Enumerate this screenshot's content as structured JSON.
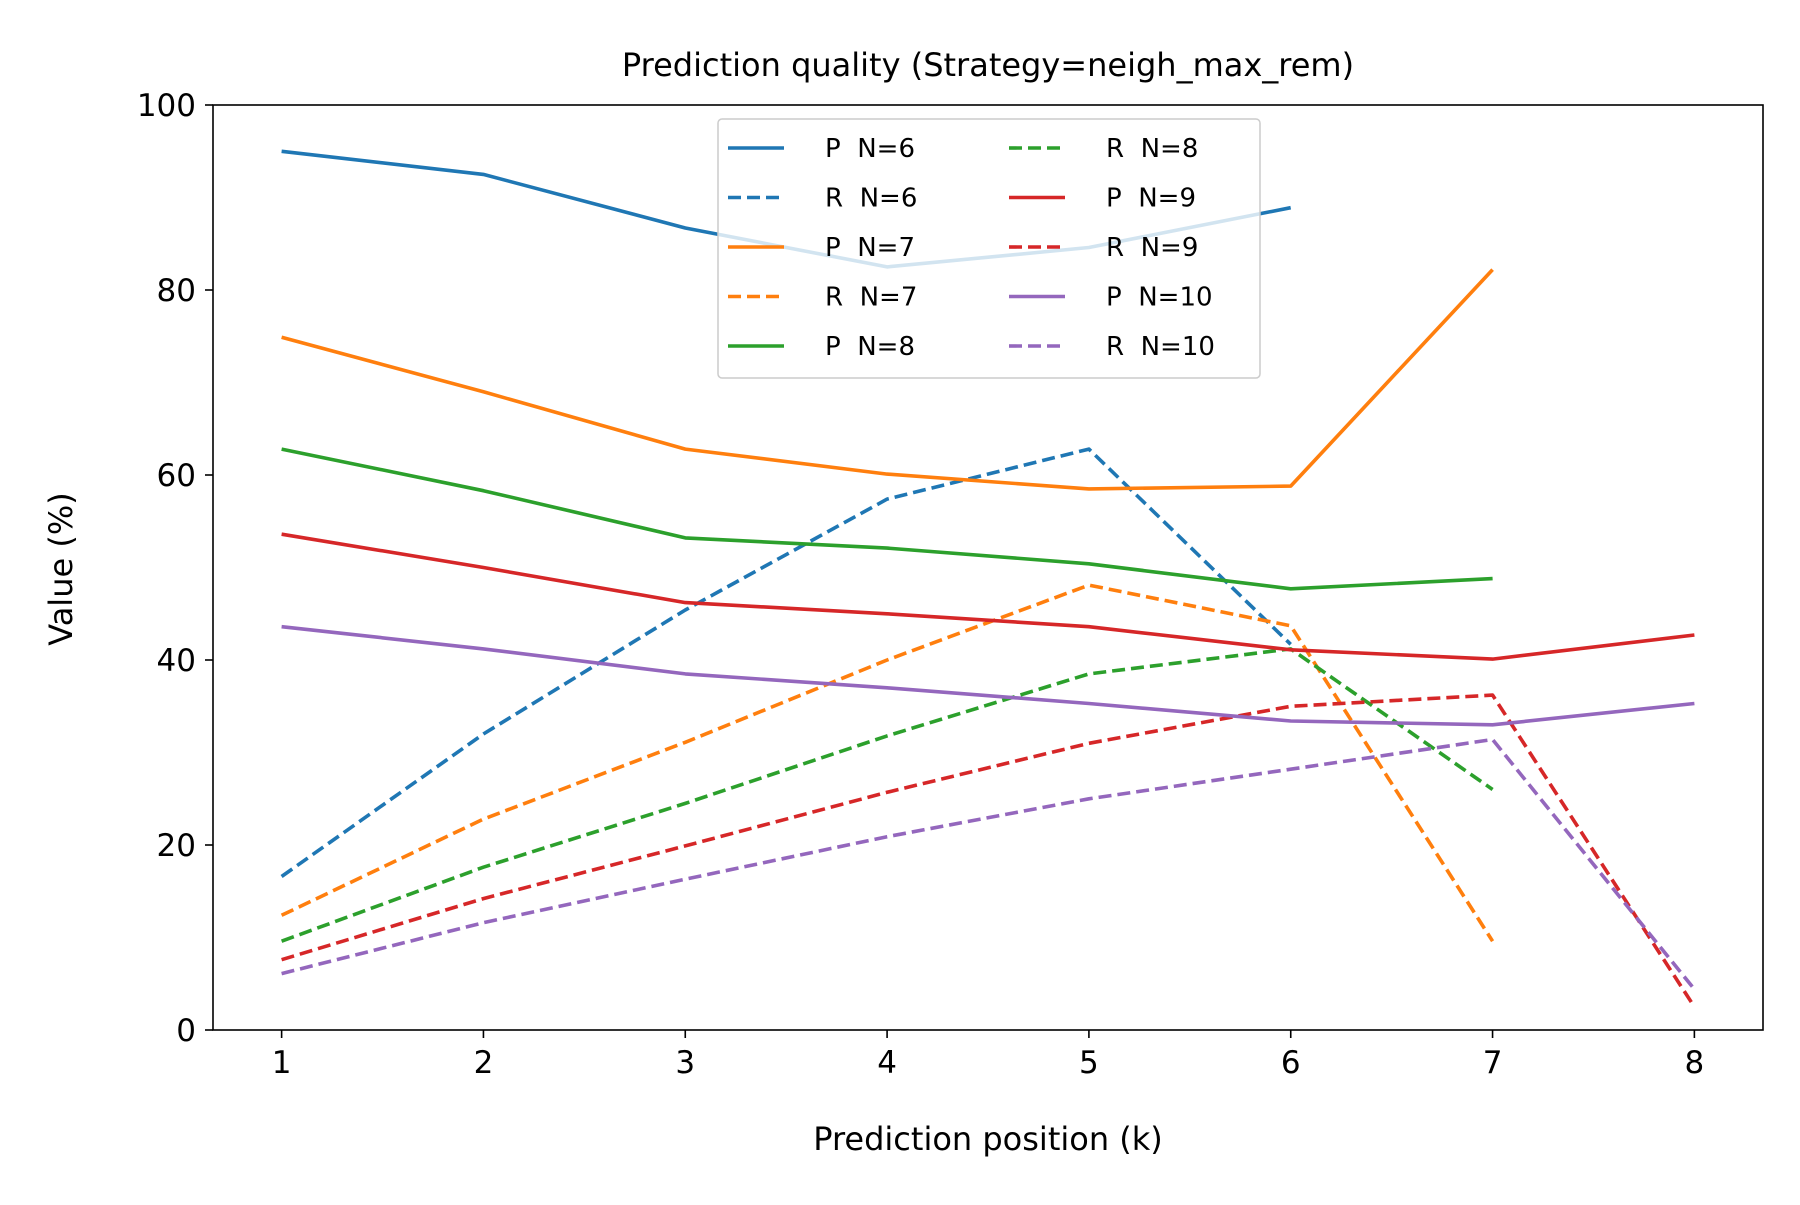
{
  "chart_data": {
    "type": "line",
    "title": "Prediction quality (Strategy=neigh_max_rem)",
    "xlabel": "Prediction position (k)",
    "ylabel": "Value (%)",
    "xlim": [
      0.66,
      8.34
    ],
    "ylim": [
      0,
      100
    ],
    "xticks": [
      "1",
      "2",
      "3",
      "4",
      "5",
      "6",
      "7",
      "8"
    ],
    "yticks": [
      "0",
      "20",
      "40",
      "60",
      "80",
      "100"
    ],
    "grid": false,
    "legend_position": "upper-center",
    "series": [
      {
        "name": "P  N=6",
        "color": "#1f77b4",
        "dash": "solid",
        "x": [
          1,
          2,
          3,
          4,
          5,
          6
        ],
        "values": [
          95.0,
          92.5,
          86.7,
          82.5,
          84.6,
          88.9
        ]
      },
      {
        "name": "R  N=6",
        "color": "#1f77b4",
        "dash": "dashed",
        "x": [
          1,
          2,
          3,
          4,
          5,
          6
        ],
        "values": [
          16.6,
          32.0,
          45.4,
          57.4,
          62.8,
          41.7
        ]
      },
      {
        "name": "P  N=7",
        "color": "#ff7f0e",
        "dash": "solid",
        "x": [
          1,
          2,
          3,
          4,
          5,
          6,
          7
        ],
        "values": [
          74.9,
          69.0,
          62.8,
          60.1,
          58.5,
          58.8,
          82.2
        ]
      },
      {
        "name": "R  N=7",
        "color": "#ff7f0e",
        "dash": "dashed",
        "x": [
          1,
          2,
          3,
          4,
          5,
          6,
          7
        ],
        "values": [
          12.4,
          22.8,
          31.1,
          40.0,
          48.1,
          43.7,
          9.6
        ]
      },
      {
        "name": "P  N=8",
        "color": "#2ca02c",
        "dash": "solid",
        "x": [
          1,
          2,
          3,
          4,
          5,
          6,
          7
        ],
        "values": [
          62.8,
          58.3,
          53.2,
          52.1,
          50.4,
          47.7,
          48.8
        ]
      },
      {
        "name": "R  N=8",
        "color": "#2ca02c",
        "dash": "dashed",
        "x": [
          1,
          2,
          3,
          4,
          5,
          6,
          7
        ],
        "values": [
          9.6,
          17.6,
          24.5,
          31.8,
          38.5,
          41.2,
          26.0
        ]
      },
      {
        "name": "P  N=9",
        "color": "#d62728",
        "dash": "solid",
        "x": [
          1,
          2,
          3,
          4,
          5,
          6,
          7,
          8
        ],
        "values": [
          53.6,
          50.0,
          46.2,
          45.0,
          43.6,
          41.1,
          40.1,
          42.7
        ]
      },
      {
        "name": "R  N=9",
        "color": "#d62728",
        "dash": "dashed",
        "x": [
          1,
          2,
          3,
          4,
          5,
          6,
          7,
          8
        ],
        "values": [
          7.6,
          14.2,
          19.9,
          25.7,
          31.0,
          35.0,
          36.2,
          2.5
        ]
      },
      {
        "name": "P  N=10",
        "color": "#9467bd",
        "dash": "solid",
        "x": [
          1,
          2,
          3,
          4,
          5,
          6,
          7,
          8
        ],
        "values": [
          43.6,
          41.2,
          38.5,
          37.0,
          35.3,
          33.4,
          33.0,
          35.3
        ]
      },
      {
        "name": "R  N=10",
        "color": "#9467bd",
        "dash": "dashed",
        "x": [
          1,
          2,
          3,
          4,
          5,
          6,
          7,
          8
        ],
        "values": [
          6.1,
          11.6,
          16.3,
          20.9,
          25.0,
          28.2,
          31.4,
          4.4
        ]
      }
    ]
  }
}
